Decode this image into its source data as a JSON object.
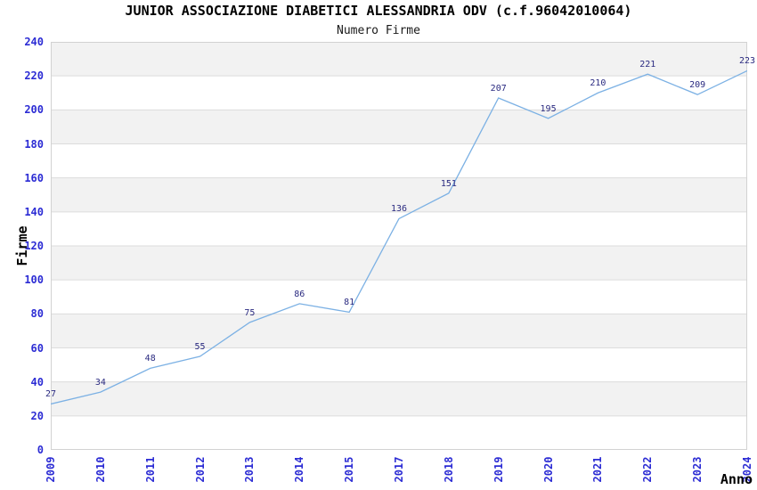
{
  "chart_data": {
    "type": "line",
    "title": "JUNIOR ASSOCIAZIONE DIABETICI ALESSANDRIA ODV (c.f.96042010064)",
    "subtitle": "Numero Firme",
    "xlabel": "Anno",
    "ylabel": "Firme",
    "categories": [
      "2009",
      "2010",
      "2011",
      "2012",
      "2013",
      "2014",
      "2015",
      "2017",
      "2018",
      "2019",
      "2020",
      "2021",
      "2022",
      "2023",
      "2024"
    ],
    "series": [
      {
        "name": "Numero Firme",
        "values": [
          27,
          34,
          48,
          55,
          75,
          86,
          81,
          136,
          151,
          207,
          195,
          210,
          221,
          209,
          223
        ]
      }
    ],
    "ylim": [
      0,
      240
    ],
    "ytick_step": 20,
    "grid": "horizontal-gridlines-with-alternating-bands",
    "legend": "none",
    "marker": "none",
    "colors": {
      "line": "#7cb1e4",
      "band": "#f2f2f2",
      "gridline": "#dcdcdc",
      "plot_border": "#d2d2d2",
      "tick_label": "#2c2cd4",
      "data_label": "#2a2a80",
      "title": "#000000",
      "background": "#ffffff"
    }
  }
}
